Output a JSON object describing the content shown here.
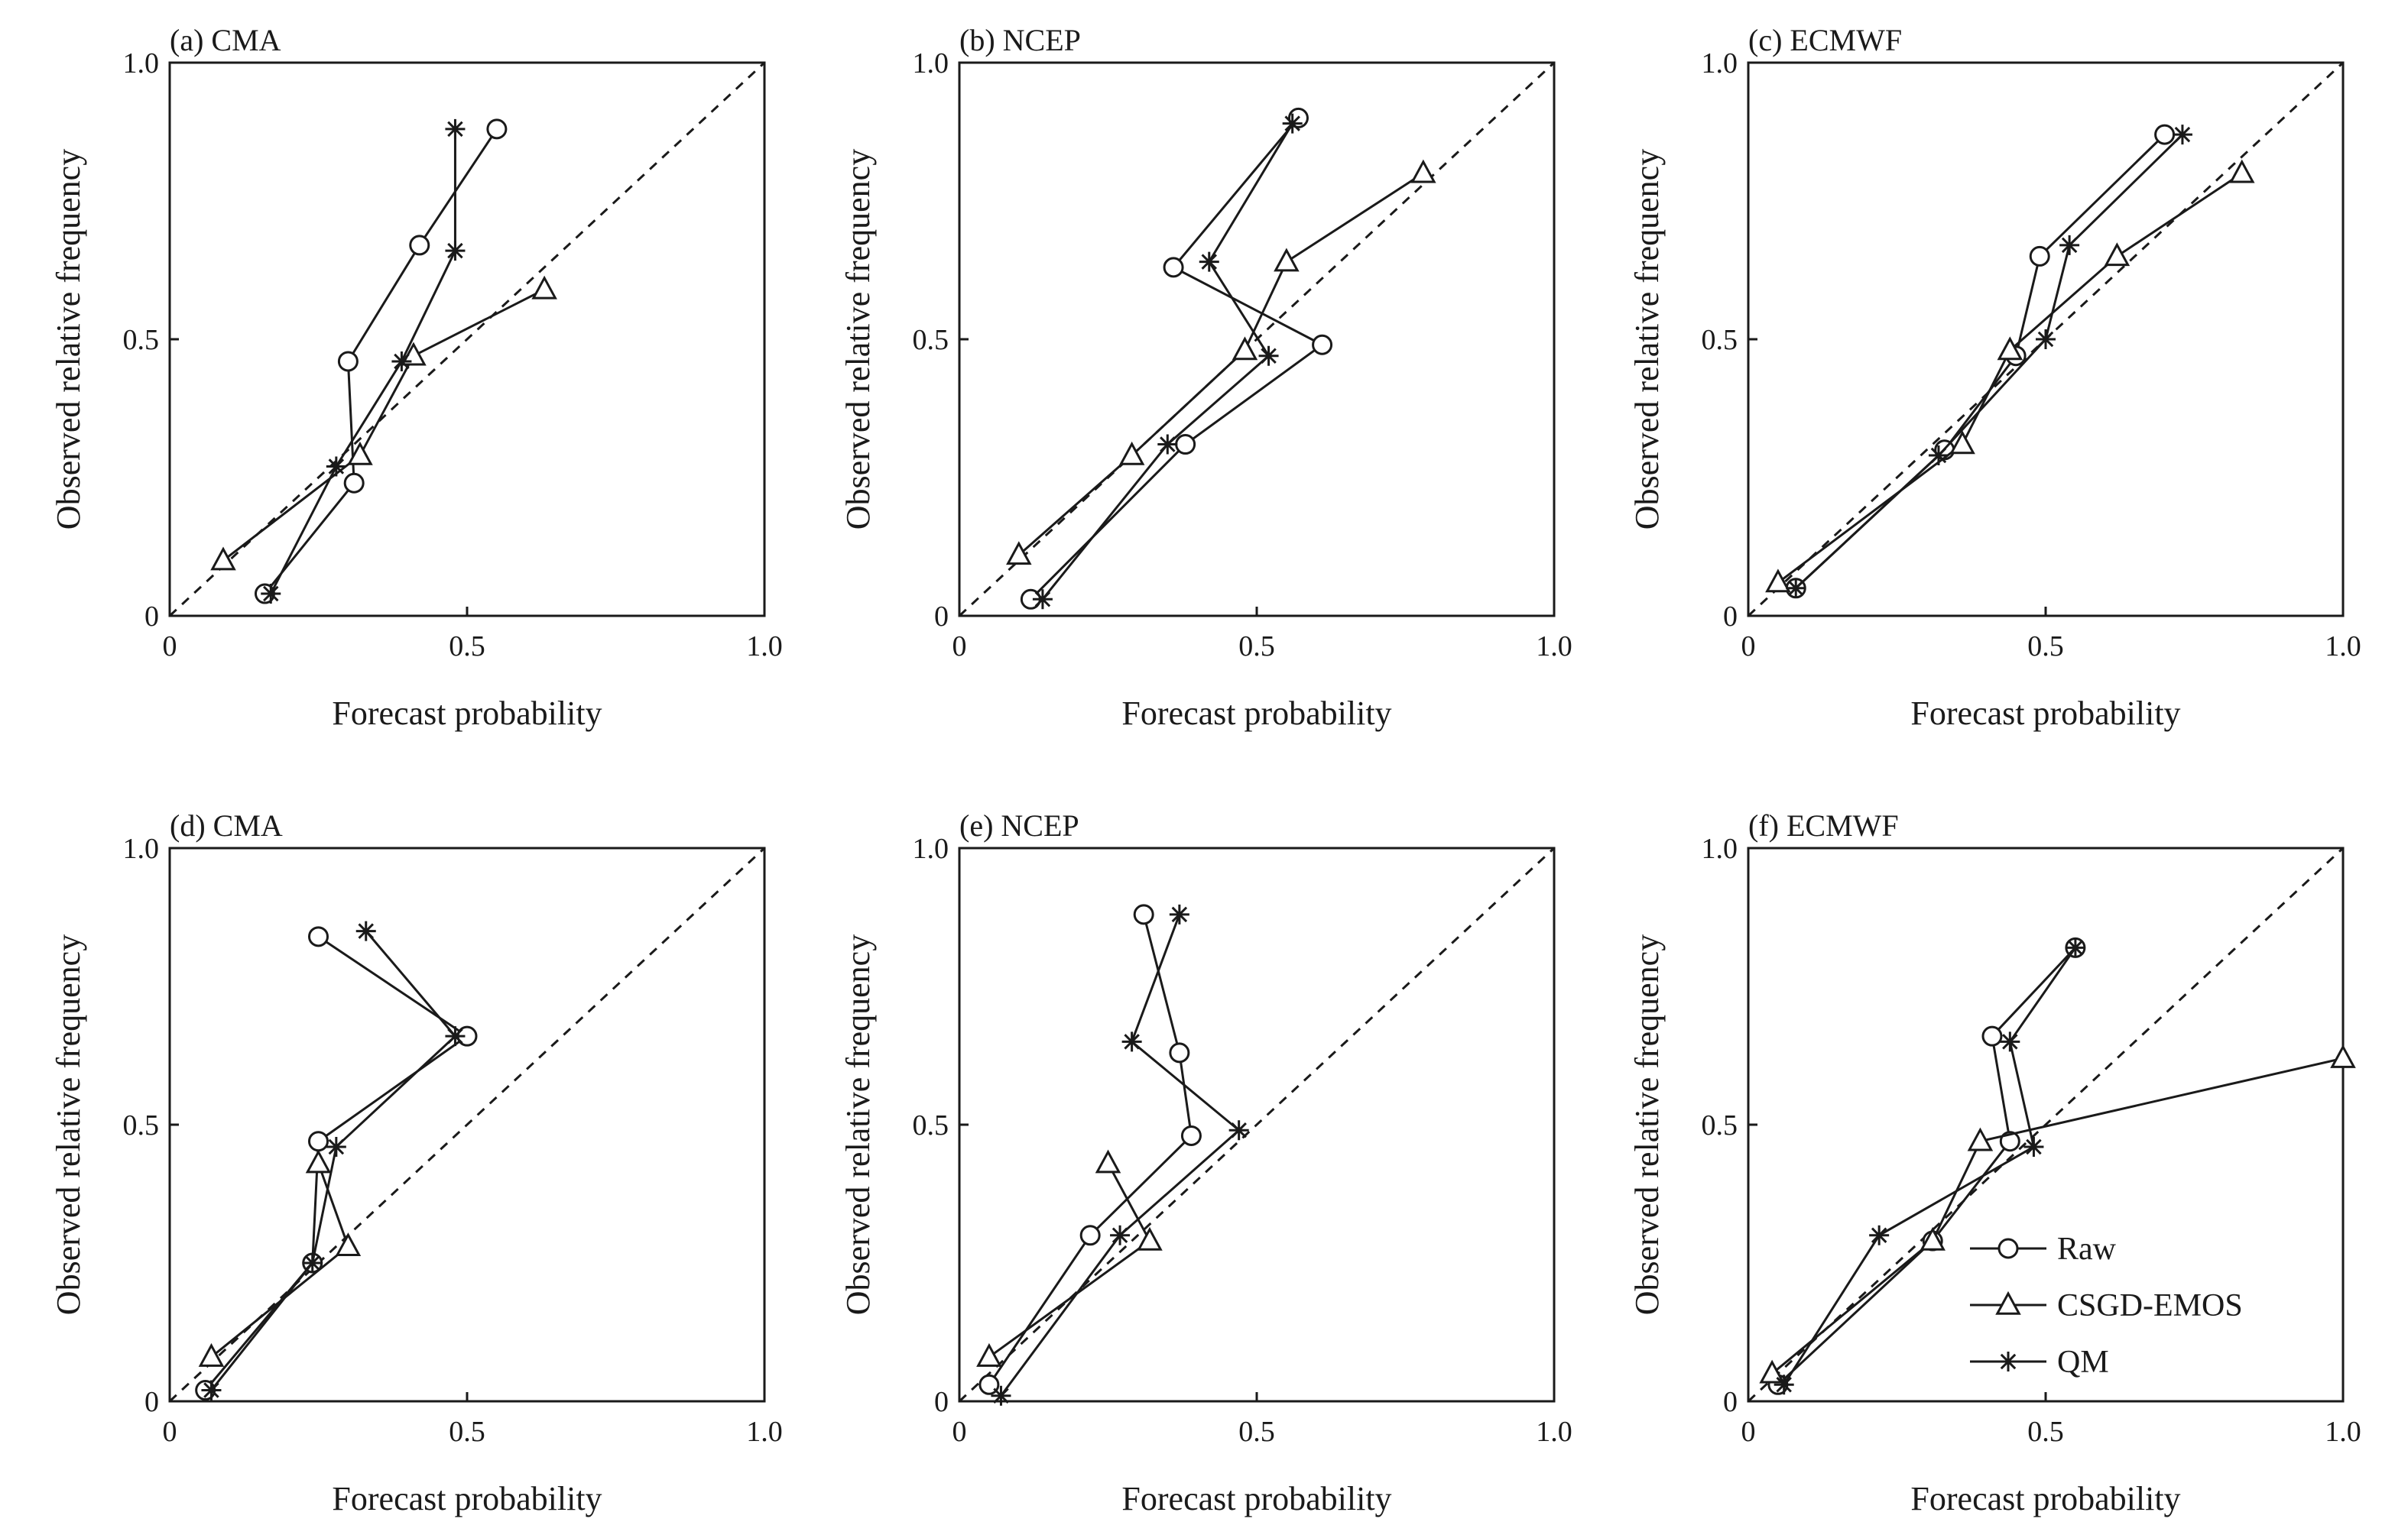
{
  "figure": {
    "axis_labels": {
      "x": "Forecast probability",
      "y": "Observed relative frequency"
    },
    "legend": {
      "location": "lower-right of panel (f)",
      "entries": [
        {
          "series": "Raw",
          "label": "Raw",
          "marker": "circle"
        },
        {
          "series": "CSGD-EMOS",
          "label": "CSGD-EMOS",
          "marker": "triangle"
        },
        {
          "series": "QM",
          "label": "QM",
          "marker": "star"
        }
      ]
    },
    "colors": {
      "line": "#1a1a1a",
      "background": "#ffffff"
    }
  },
  "chart_data": [
    {
      "type": "line",
      "title": "(a) CMA",
      "xlabel": "Forecast probability",
      "ylabel": "Observed relative frequency",
      "xlim": [
        0,
        1
      ],
      "ylim": [
        0,
        1
      ],
      "xticks": [
        "0",
        "0.5",
        "1.0"
      ],
      "yticks": [
        "0",
        "0.5",
        "1.0"
      ],
      "reference_line": "y = x (dashed)",
      "series": [
        {
          "name": "Raw",
          "points": [
            [
              0.16,
              0.04
            ],
            [
              0.31,
              0.24
            ],
            [
              0.3,
              0.46
            ],
            [
              0.42,
              0.67
            ],
            [
              0.55,
              0.88
            ]
          ]
        },
        {
          "name": "CSGD-EMOS",
          "points": [
            [
              0.09,
              0.1
            ],
            [
              0.32,
              0.29
            ],
            [
              0.41,
              0.47
            ],
            [
              0.63,
              0.59
            ]
          ]
        },
        {
          "name": "QM",
          "points": [
            [
              0.17,
              0.04
            ],
            [
              0.28,
              0.27
            ],
            [
              0.39,
              0.46
            ],
            [
              0.48,
              0.66
            ],
            [
              0.48,
              0.88
            ]
          ]
        }
      ]
    },
    {
      "type": "line",
      "title": "(b) NCEP",
      "xlabel": "Forecast probability",
      "ylabel": "Observed relative frequency",
      "xlim": [
        0,
        1
      ],
      "ylim": [
        0,
        1
      ],
      "xticks": [
        "0",
        "0.5",
        "1.0"
      ],
      "yticks": [
        "0",
        "0.5",
        "1.0"
      ],
      "reference_line": "y = x (dashed)",
      "series": [
        {
          "name": "Raw",
          "points": [
            [
              0.12,
              0.03
            ],
            [
              0.38,
              0.31
            ],
            [
              0.61,
              0.49
            ],
            [
              0.36,
              0.63
            ],
            [
              0.57,
              0.9
            ]
          ]
        },
        {
          "name": "CSGD-EMOS",
          "points": [
            [
              0.1,
              0.11
            ],
            [
              0.29,
              0.29
            ],
            [
              0.48,
              0.48
            ],
            [
              0.55,
              0.64
            ],
            [
              0.78,
              0.8
            ]
          ]
        },
        {
          "name": "QM",
          "points": [
            [
              0.14,
              0.03
            ],
            [
              0.35,
              0.31
            ],
            [
              0.52,
              0.47
            ],
            [
              0.42,
              0.64
            ],
            [
              0.56,
              0.89
            ]
          ]
        }
      ]
    },
    {
      "type": "line",
      "title": "(c) ECMWF",
      "xlabel": "Forecast probability",
      "ylabel": "Observed relative frequency",
      "xlim": [
        0,
        1
      ],
      "ylim": [
        0,
        1
      ],
      "xticks": [
        "0",
        "0.5",
        "1.0"
      ],
      "yticks": [
        "0",
        "0.5",
        "1.0"
      ],
      "reference_line": "y = x (dashed)",
      "series": [
        {
          "name": "Raw",
          "points": [
            [
              0.08,
              0.05
            ],
            [
              0.33,
              0.3
            ],
            [
              0.45,
              0.47
            ],
            [
              0.49,
              0.65
            ],
            [
              0.7,
              0.87
            ]
          ]
        },
        {
          "name": "CSGD-EMOS",
          "points": [
            [
              0.05,
              0.06
            ],
            [
              0.36,
              0.31
            ],
            [
              0.44,
              0.48
            ],
            [
              0.62,
              0.65
            ],
            [
              0.83,
              0.8
            ]
          ]
        },
        {
          "name": "QM",
          "points": [
            [
              0.08,
              0.05
            ],
            [
              0.32,
              0.29
            ],
            [
              0.5,
              0.5
            ],
            [
              0.54,
              0.67
            ],
            [
              0.73,
              0.87
            ]
          ]
        }
      ]
    },
    {
      "type": "line",
      "title": "(d) CMA",
      "xlabel": "Forecast probability",
      "ylabel": "Observed relative frequency",
      "xlim": [
        0,
        1
      ],
      "ylim": [
        0,
        1
      ],
      "xticks": [
        "0",
        "0.5",
        "1.0"
      ],
      "yticks": [
        "0",
        "0.5",
        "1.0"
      ],
      "reference_line": "y = x (dashed)",
      "series": [
        {
          "name": "Raw",
          "points": [
            [
              0.06,
              0.02
            ],
            [
              0.24,
              0.25
            ],
            [
              0.25,
              0.47
            ],
            [
              0.5,
              0.66
            ],
            [
              0.25,
              0.84
            ]
          ]
        },
        {
          "name": "CSGD-EMOS",
          "points": [
            [
              0.07,
              0.08
            ],
            [
              0.3,
              0.28
            ],
            [
              0.25,
              0.43
            ]
          ]
        },
        {
          "name": "QM",
          "points": [
            [
              0.07,
              0.02
            ],
            [
              0.24,
              0.25
            ],
            [
              0.28,
              0.46
            ],
            [
              0.48,
              0.66
            ],
            [
              0.33,
              0.85
            ]
          ]
        }
      ]
    },
    {
      "type": "line",
      "title": "(e) NCEP",
      "xlabel": "Forecast probability",
      "ylabel": "Observed relative frequency",
      "xlim": [
        0,
        1
      ],
      "ylim": [
        0,
        1
      ],
      "xticks": [
        "0",
        "0.5",
        "1.0"
      ],
      "yticks": [
        "0",
        "0.5",
        "1.0"
      ],
      "reference_line": "y = x (dashed)",
      "series": [
        {
          "name": "Raw",
          "points": [
            [
              0.05,
              0.03
            ],
            [
              0.22,
              0.3
            ],
            [
              0.39,
              0.48
            ],
            [
              0.37,
              0.63
            ],
            [
              0.31,
              0.88
            ]
          ]
        },
        {
          "name": "CSGD-EMOS",
          "points": [
            [
              0.05,
              0.08
            ],
            [
              0.32,
              0.29
            ],
            [
              0.25,
              0.43
            ]
          ]
        },
        {
          "name": "QM",
          "points": [
            [
              0.07,
              0.01
            ],
            [
              0.27,
              0.3
            ],
            [
              0.47,
              0.49
            ],
            [
              0.29,
              0.65
            ],
            [
              0.37,
              0.88
            ]
          ]
        }
      ]
    },
    {
      "type": "line",
      "title": "(f) ECMWF",
      "xlabel": "Forecast probability",
      "ylabel": "Observed relative frequency",
      "xlim": [
        0,
        1
      ],
      "ylim": [
        0,
        1
      ],
      "xticks": [
        "0",
        "0.5",
        "1.0"
      ],
      "yticks": [
        "0",
        "0.5",
        "1.0"
      ],
      "reference_line": "y = x (dashed)",
      "series": [
        {
          "name": "Raw",
          "points": [
            [
              0.05,
              0.03
            ],
            [
              0.31,
              0.29
            ],
            [
              0.44,
              0.47
            ],
            [
              0.41,
              0.66
            ],
            [
              0.55,
              0.82
            ]
          ]
        },
        {
          "name": "CSGD-EMOS",
          "points": [
            [
              0.04,
              0.05
            ],
            [
              0.31,
              0.29
            ],
            [
              0.39,
              0.47
            ],
            [
              1.0,
              0.62
            ]
          ]
        },
        {
          "name": "QM",
          "points": [
            [
              0.06,
              0.03
            ],
            [
              0.22,
              0.3
            ],
            [
              0.48,
              0.46
            ],
            [
              0.44,
              0.65
            ],
            [
              0.55,
              0.82
            ]
          ]
        }
      ]
    }
  ]
}
